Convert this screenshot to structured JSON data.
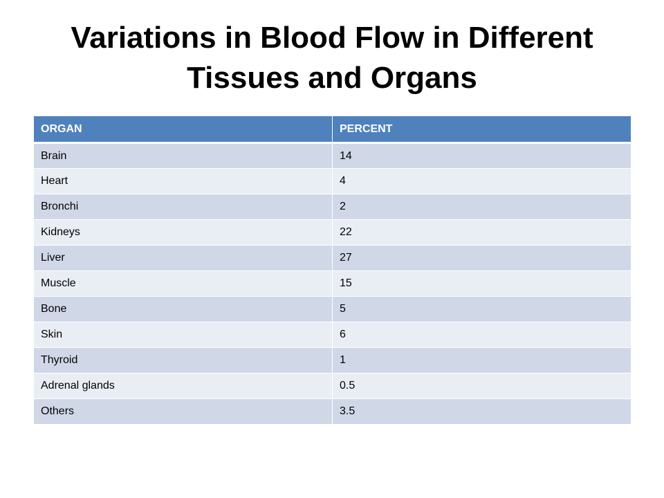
{
  "slide": {
    "title": "Variations in Blood Flow in Different Tissues and Organs"
  },
  "table": {
    "headers": [
      "ORGAN",
      "PERCENT"
    ],
    "rows": [
      [
        "Brain",
        "14"
      ],
      [
        "Heart",
        "4"
      ],
      [
        "Bronchi",
        "2"
      ],
      [
        "Kidneys",
        "22"
      ],
      [
        "Liver",
        "27"
      ],
      [
        "Muscle",
        "15"
      ],
      [
        "Bone",
        "5"
      ],
      [
        "Skin",
        "6"
      ],
      [
        "Thyroid",
        "1"
      ],
      [
        "Adrenal glands",
        "0.5"
      ],
      [
        "Others",
        "3.5"
      ]
    ]
  },
  "colors": {
    "header_bg": "#4f81bd",
    "row_odd_bg": "#d0d8e8",
    "row_even_bg": "#e9edf4"
  }
}
